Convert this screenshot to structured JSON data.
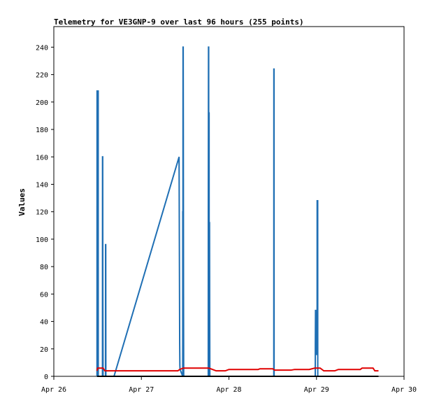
{
  "chart_data": {
    "type": "line",
    "title": "Telemetry for VE3GNP-9 over last 96 hours (255 points)",
    "xlabel": "",
    "ylabel": "Values",
    "xlim": [
      "2024-04-26T00:00",
      "2024-04-30T00:00"
    ],
    "ylim": [
      0,
      255
    ],
    "x_ticks": [
      {
        "value": "2024-04-26T00:00",
        "label": "Apr 26"
      },
      {
        "value": "2024-04-27T00:00",
        "label": "Apr 27"
      },
      {
        "value": "2024-04-28T00:00",
        "label": "Apr 28"
      },
      {
        "value": "2024-04-29T00:00",
        "label": "Apr 29"
      },
      {
        "value": "2024-04-30T00:00",
        "label": "Apr 30"
      }
    ],
    "y_ticks": [
      0,
      20,
      40,
      60,
      80,
      100,
      120,
      140,
      160,
      180,
      200,
      220,
      240
    ],
    "grid": false,
    "legend": "none",
    "series": [
      {
        "color": "#1f6fb4",
        "points": [
          [
            "2024-04-26T11:50",
            0
          ],
          [
            "2024-04-26T11:51",
            208
          ],
          [
            "2024-04-26T12:10",
            208
          ],
          [
            "2024-04-26T12:11",
            0
          ],
          [
            "2024-04-26T13:20",
            0
          ],
          [
            "2024-04-26T13:21",
            160
          ],
          [
            "2024-04-26T13:24",
            160
          ],
          [
            "2024-04-26T13:26",
            64
          ],
          [
            "2024-04-26T13:30",
            0
          ],
          [
            "2024-04-26T14:10",
            0
          ],
          [
            "2024-04-26T14:11",
            96
          ],
          [
            "2024-04-26T14:14",
            96
          ],
          [
            "2024-04-26T14:16",
            0
          ],
          [
            "2024-04-26T16:30",
            0
          ],
          [
            "2024-04-27T10:20",
            160
          ],
          [
            "2024-04-27T10:30",
            24
          ],
          [
            "2024-04-27T10:33",
            8
          ],
          [
            "2024-04-27T10:36",
            5
          ],
          [
            "2024-04-27T11:20",
            0
          ],
          [
            "2024-04-27T11:21",
            120
          ],
          [
            "2024-04-27T11:24",
            120
          ],
          [
            "2024-04-27T11:25",
            240
          ],
          [
            "2024-04-27T11:28",
            240
          ],
          [
            "2024-04-27T11:30",
            180
          ],
          [
            "2024-04-27T11:33",
            60
          ],
          [
            "2024-04-27T11:36",
            0
          ],
          [
            "2024-04-27T18:20",
            0
          ],
          [
            "2024-04-27T18:21",
            120
          ],
          [
            "2024-04-27T18:24",
            240
          ],
          [
            "2024-04-27T18:27",
            240
          ],
          [
            "2024-04-27T18:29",
            0
          ],
          [
            "2024-04-27T18:31",
            192
          ],
          [
            "2024-04-27T18:34",
            192
          ],
          [
            "2024-04-27T18:36",
            0
          ],
          [
            "2024-04-27T18:38",
            112
          ],
          [
            "2024-04-27T18:41",
            112
          ],
          [
            "2024-04-27T18:43",
            56
          ],
          [
            "2024-04-27T18:46",
            0
          ],
          [
            "2024-04-28T12:18",
            0
          ],
          [
            "2024-04-28T12:19",
            224
          ],
          [
            "2024-04-28T12:22",
            224
          ],
          [
            "2024-04-28T12:23",
            0
          ],
          [
            "2024-04-28T23:40",
            0
          ],
          [
            "2024-04-28T23:41",
            24
          ],
          [
            "2024-04-28T23:44",
            48
          ],
          [
            "2024-04-28T23:47",
            48
          ],
          [
            "2024-04-28T23:50",
            32
          ],
          [
            "2024-04-28T23:53",
            16
          ],
          [
            "2024-04-29T00:10",
            16
          ],
          [
            "2024-04-29T00:11",
            128
          ],
          [
            "2024-04-29T00:20",
            128
          ],
          [
            "2024-04-29T00:21",
            0
          ]
        ]
      },
      {
        "color": "#e00000",
        "points": [
          [
            "2024-04-26T11:50",
            4
          ],
          [
            "2024-04-26T12:00",
            6
          ],
          [
            "2024-04-26T13:30",
            6
          ],
          [
            "2024-04-26T14:00",
            4
          ],
          [
            "2024-04-27T10:00",
            4
          ],
          [
            "2024-04-27T10:30",
            5
          ],
          [
            "2024-04-27T11:30",
            6
          ],
          [
            "2024-04-27T18:30",
            6
          ],
          [
            "2024-04-27T19:30",
            5
          ],
          [
            "2024-04-27T20:30",
            4
          ],
          [
            "2024-04-27T23:00",
            4
          ],
          [
            "2024-04-28T00:00",
            5
          ],
          [
            "2024-04-28T08:00",
            5
          ],
          [
            "2024-04-28T08:30",
            5.5
          ],
          [
            "2024-04-28T12:00",
            5.5
          ],
          [
            "2024-04-28T12:30",
            4.5
          ],
          [
            "2024-04-28T17:00",
            4.5
          ],
          [
            "2024-04-28T18:00",
            5
          ],
          [
            "2024-04-28T22:00",
            5
          ],
          [
            "2024-04-28T23:30",
            6
          ],
          [
            "2024-04-29T01:00",
            6
          ],
          [
            "2024-04-29T02:00",
            4
          ],
          [
            "2024-04-29T05:00",
            4
          ],
          [
            "2024-04-29T06:00",
            5
          ],
          [
            "2024-04-29T12:00",
            5
          ],
          [
            "2024-04-29T12:30",
            6
          ],
          [
            "2024-04-29T15:30",
            6
          ],
          [
            "2024-04-29T16:00",
            4
          ],
          [
            "2024-04-29T17:00",
            4
          ]
        ]
      },
      {
        "color": "#000000",
        "points": [
          [
            "2024-04-26T11:50",
            0
          ],
          [
            "2024-04-29T17:00",
            0
          ]
        ]
      }
    ]
  }
}
